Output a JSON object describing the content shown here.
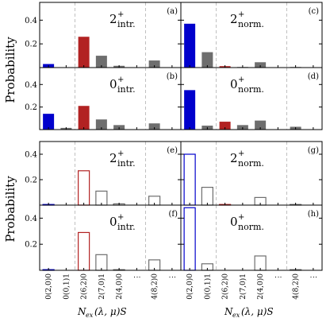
{
  "figure": {
    "ylabel": "Probability",
    "xlabel": "N_ex(λ,μ)S",
    "xlabel_parts": {
      "main": "N",
      "sub": "ex",
      "rest": "(λ, μ)S"
    }
  },
  "colors": {
    "blue": "#0000cc",
    "red": "#b22222",
    "gray": "#6e6e6e",
    "dashed": "#c0c0c0"
  },
  "chart_data": [
    {
      "id": "a",
      "type": "bar",
      "panel_tag": "(a)",
      "state": {
        "base": "2",
        "sup": "+",
        "sub": "intr."
      },
      "categories": [
        "0(2,0)0",
        "0(0,1)1",
        "2(6,2)0",
        "2(7,0)1",
        "2(4,0)0",
        "⋮",
        "4(8,2)0",
        "⋮"
      ],
      "values": [
        0.03,
        0.0,
        0.26,
        0.1,
        0.015,
        null,
        0.06,
        null
      ],
      "style": "filled",
      "ylim": [
        0,
        0.55
      ],
      "yticks": [
        0.2,
        0.4
      ]
    },
    {
      "id": "b",
      "type": "bar",
      "panel_tag": "(b)",
      "state": {
        "base": "0",
        "sup": "+",
        "sub": "intr."
      },
      "categories": [
        "0(2,0)0",
        "0(0,1)1",
        "2(6,2)0",
        "2(7,0)1",
        "2(4,0)0",
        "⋮",
        "4(8,2)0",
        "⋮"
      ],
      "values": [
        0.14,
        0.015,
        0.21,
        0.09,
        0.04,
        null,
        0.055,
        null
      ],
      "style": "filled",
      "ylim": [
        0,
        0.55
      ],
      "yticks": [
        0.2,
        0.4
      ]
    },
    {
      "id": "c",
      "type": "bar",
      "panel_tag": "(c)",
      "state": {
        "base": "2",
        "sup": "+",
        "sub": "norm."
      },
      "categories": [
        "0(2,0)0",
        "0(0,1)1",
        "2(6,2)0",
        "2(7,0)1",
        "2(4,0)0",
        "⋮",
        "4(8,2)0",
        "⋮"
      ],
      "values": [
        0.37,
        0.13,
        0.012,
        0.005,
        0.045,
        null,
        0.005,
        null
      ],
      "style": "filled",
      "ylim": [
        0,
        0.55
      ],
      "yticks": [
        0.2,
        0.4
      ]
    },
    {
      "id": "d",
      "type": "bar",
      "panel_tag": "(d)",
      "state": {
        "base": "0",
        "sup": "+",
        "sub": "norm."
      },
      "categories": [
        "0(2,0)0",
        "0(0,1)1",
        "2(6,2)0",
        "2(7,0)1",
        "2(4,0)0",
        "⋮",
        "4(8,2)0",
        "⋮"
      ],
      "values": [
        0.35,
        0.035,
        0.07,
        0.04,
        0.08,
        null,
        0.025,
        null
      ],
      "style": "filled",
      "ylim": [
        0,
        0.55
      ],
      "yticks": [
        0.2,
        0.4
      ]
    },
    {
      "id": "e",
      "type": "bar",
      "panel_tag": "(e)",
      "state": {
        "base": "2",
        "sup": "+",
        "sub": "intr."
      },
      "categories": [
        "0(2,0)0",
        "0(0,1)1",
        "2(6,2)0",
        "2(7,0)1",
        "2(4,0)0",
        "⋮",
        "4(8,2)0",
        "⋮"
      ],
      "values": [
        0.005,
        0.0,
        0.27,
        0.11,
        0.01,
        null,
        0.07,
        null
      ],
      "style": "outline",
      "ylim": [
        0,
        0.5
      ],
      "yticks": [
        0.2,
        0.4
      ]
    },
    {
      "id": "f",
      "type": "bar",
      "panel_tag": "(f)",
      "state": {
        "base": "0",
        "sup": "+",
        "sub": "intr."
      },
      "categories": [
        "0(2,0)0",
        "0(0,1)1",
        "2(6,2)0",
        "2(7,0)1",
        "2(4,0)0",
        "⋮",
        "4(8,2)0",
        "⋮"
      ],
      "values": [
        0.005,
        0.0,
        0.29,
        0.12,
        0.005,
        null,
        0.08,
        null
      ],
      "style": "outline",
      "ylim": [
        0,
        0.5
      ],
      "yticks": [
        0.2,
        0.4
      ]
    },
    {
      "id": "g",
      "type": "bar",
      "panel_tag": "(g)",
      "state": {
        "base": "2",
        "sup": "+",
        "sub": "norm."
      },
      "categories": [
        "0(2,0)0",
        "0(0,1)1",
        "2(6,2)0",
        "2(7,0)1",
        "2(4,0)0",
        "⋮",
        "4(8,2)0",
        "⋮"
      ],
      "values": [
        0.4,
        0.14,
        0.005,
        0.0,
        0.06,
        null,
        0.005,
        null
      ],
      "style": "outline",
      "ylim": [
        0,
        0.5
      ],
      "yticks": [
        0.2,
        0.4
      ]
    },
    {
      "id": "h",
      "type": "bar",
      "panel_tag": "(h)",
      "state": {
        "base": "0",
        "sup": "+",
        "sub": "norm."
      },
      "categories": [
        "0(2,0)0",
        "0(0,1)1",
        "2(6,2)0",
        "2(7,0)1",
        "2(4,0)0",
        "⋮",
        "4(8,2)0",
        "⋮"
      ],
      "values": [
        0.48,
        0.05,
        0.0,
        0.0,
        0.11,
        null,
        0.005,
        null
      ],
      "style": "outline",
      "ylim": [
        0,
        0.5
      ],
      "yticks": [
        0.2,
        0.4
      ]
    }
  ]
}
